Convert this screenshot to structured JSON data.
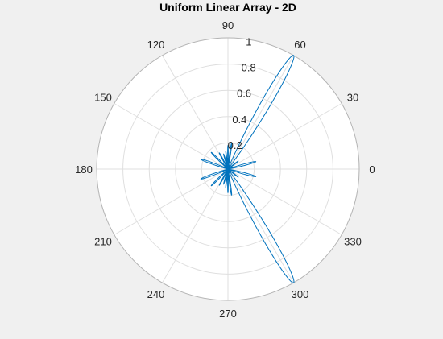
{
  "chart_data": {
    "type": "polar-line",
    "title": "Uniform Linear Array - 2D",
    "theta_unit": "degrees",
    "theta_ticks": [
      0,
      30,
      60,
      90,
      120,
      150,
      180,
      210,
      240,
      270,
      300,
      330
    ],
    "theta_tick_labels": [
      "0",
      "30",
      "60",
      "90",
      "120",
      "150",
      "180",
      "210",
      "240",
      "270",
      "300",
      "330"
    ],
    "r_lim": [
      0,
      1
    ],
    "r_ticks": [
      0.2,
      0.4,
      0.6,
      0.8,
      1
    ],
    "r_tick_labels": [
      "0.2",
      "0.4",
      "0.6",
      "0.8",
      "1"
    ],
    "r_tick_label_angle_deg": 80,
    "grid": true,
    "series": [
      {
        "lobes": [
          {
            "center_deg": 60,
            "peak": 1.0,
            "half_width_deg": 8
          },
          {
            "center_deg": 300,
            "peak": 1.0,
            "half_width_deg": 8
          },
          {
            "center_deg": 82,
            "peak": 0.2,
            "half_width_deg": 4
          },
          {
            "center_deg": 278,
            "peak": 0.2,
            "half_width_deg": 4
          },
          {
            "center_deg": 90,
            "peak": 0.18,
            "half_width_deg": 3
          },
          {
            "center_deg": 270,
            "peak": 0.18,
            "half_width_deg": 3
          },
          {
            "center_deg": 97,
            "peak": 0.14,
            "half_width_deg": 3
          },
          {
            "center_deg": 263,
            "peak": 0.14,
            "half_width_deg": 3
          },
          {
            "center_deg": 106,
            "peak": 0.12,
            "half_width_deg": 4
          },
          {
            "center_deg": 254,
            "peak": 0.12,
            "half_width_deg": 4
          },
          {
            "center_deg": 15,
            "peak": 0.22,
            "half_width_deg": 6
          },
          {
            "center_deg": 345,
            "peak": 0.22,
            "half_width_deg": 6
          },
          {
            "center_deg": 38,
            "peak": 0.1,
            "half_width_deg": 4
          },
          {
            "center_deg": 322,
            "peak": 0.1,
            "half_width_deg": 4
          },
          {
            "center_deg": 118,
            "peak": 0.14,
            "half_width_deg": 4
          },
          {
            "center_deg": 242,
            "peak": 0.14,
            "half_width_deg": 4
          },
          {
            "center_deg": 135,
            "peak": 0.18,
            "half_width_deg": 5
          },
          {
            "center_deg": 225,
            "peak": 0.18,
            "half_width_deg": 5
          },
          {
            "center_deg": 160,
            "peak": 0.22,
            "half_width_deg": 6
          },
          {
            "center_deg": 200,
            "peak": 0.22,
            "half_width_deg": 6
          }
        ]
      }
    ]
  },
  "colors": {
    "figure_background": "#f0f0f0",
    "axes_background": "#ffffff",
    "grid": "#dfdfdf",
    "outer_ring": "#b3b3b3",
    "line": "#0072bd",
    "text": "#262626"
  }
}
